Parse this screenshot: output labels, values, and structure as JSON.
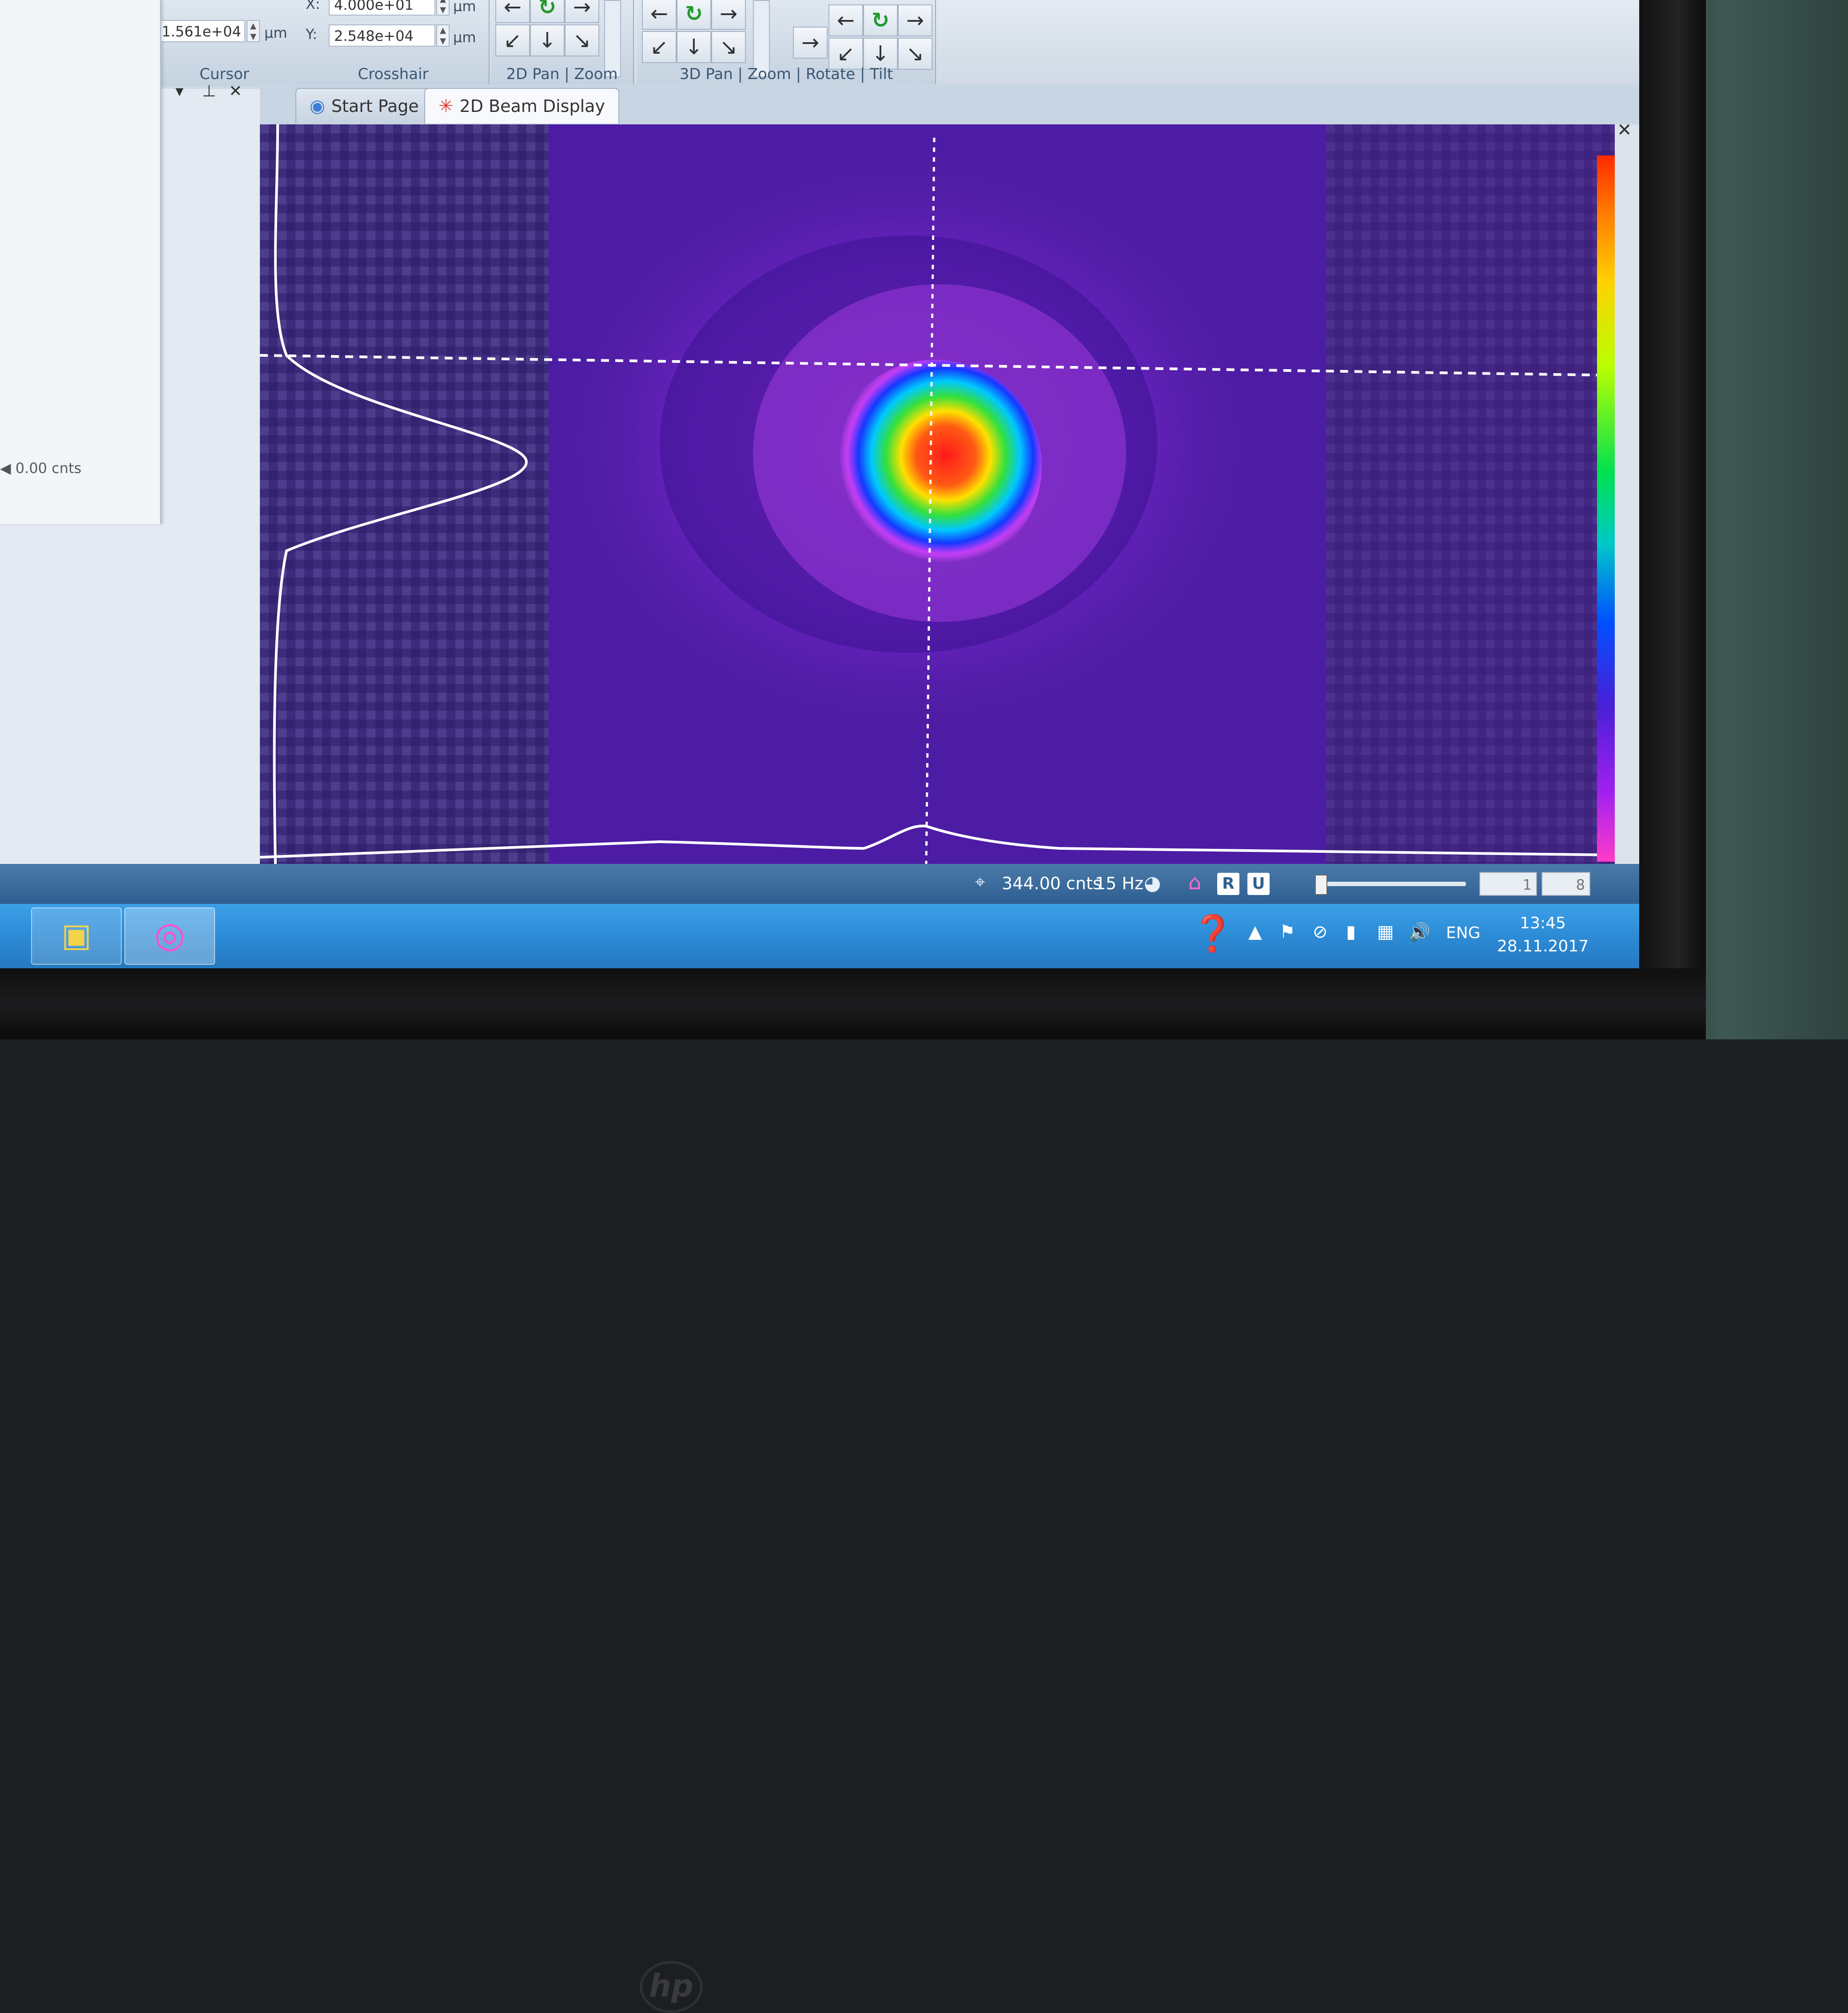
{
  "ribbon": {
    "cursor": {
      "value": "1.561e+04",
      "unit": "µm",
      "label": "Cursor"
    },
    "crosshair": {
      "x_label": "X:",
      "x_value": "4.000e+01",
      "x_unit": "µm",
      "y_label": "Y:",
      "y_value": "2.548e+04",
      "y_unit": "µm",
      "label": "Crosshair"
    },
    "pan2d_label": "2D Pan | Zoom",
    "pan3d_label": "3D Pan | Zoom | Rotate | Tilt"
  },
  "left_panel": {
    "level_label": "0.00 cnts"
  },
  "tabs": [
    {
      "label": "Start Page",
      "icon": "start-page-icon"
    },
    {
      "label": "2D Beam Display",
      "icon": "beam-display-icon"
    }
  ],
  "status": {
    "counts": "344.00 cnts",
    "rate": "15 Hz",
    "btn_r": "R",
    "btn_u": "U",
    "spin_value": "1",
    "spin_value2": "8"
  },
  "taskbar": {
    "language": "ENG",
    "time": "13:45",
    "date": "28.11.2017"
  },
  "colors": {
    "background_plot": "#4a1f8f",
    "ribbon": "#d4dee9",
    "taskbar": "#2d8bd6"
  }
}
